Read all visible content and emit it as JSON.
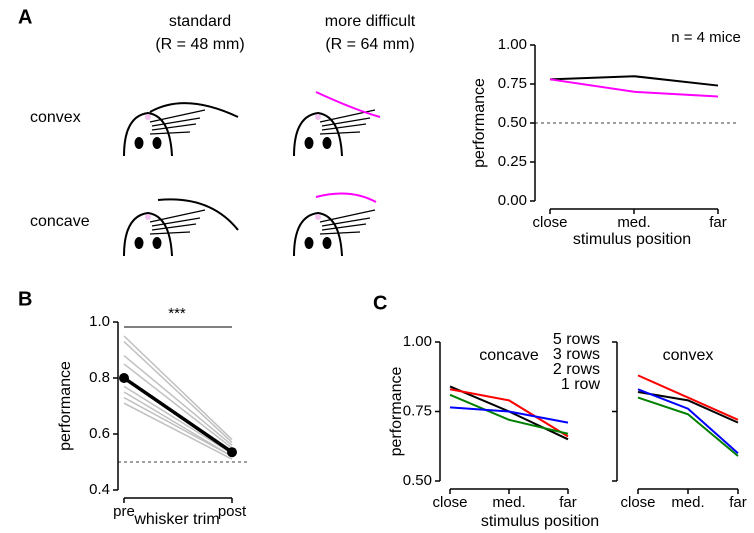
{
  "diagram": {
    "columns": [
      {
        "title": "standard",
        "subtitle": "(R = 48 mm)",
        "color": "#000000"
      },
      {
        "title": "more difficult",
        "subtitle": "(R = 64 mm)",
        "color": "#ff00ff"
      }
    ],
    "rows": [
      "convex",
      "concave"
    ]
  },
  "chart_data": [
    {
      "type": "line",
      "panel": "A",
      "annotation": "n = 4 mice",
      "xlabel": "stimulus position",
      "ylabel": "performance",
      "categories": [
        "close",
        "med.",
        "far"
      ],
      "series": [
        {
          "color": "#000000",
          "values": [
            0.78,
            0.8,
            0.74
          ]
        },
        {
          "color": "#ff00ff",
          "values": [
            0.78,
            0.7,
            0.67
          ]
        }
      ],
      "ylim": [
        0,
        1
      ],
      "yticks": [
        {
          "value": 0,
          "label": "0.00"
        },
        {
          "value": 0.25,
          "label": "0.25"
        },
        {
          "value": 0.5,
          "label": "0.50"
        },
        {
          "value": 0.75,
          "label": "0.75"
        },
        {
          "value": 1,
          "label": "1.00"
        }
      ],
      "hline": 0.5
    },
    {
      "type": "line",
      "panel": "B",
      "annotation": "***",
      "xlabel": "whisker trim",
      "ylabel": "performance",
      "categories": [
        "pre",
        "post"
      ],
      "series": [
        {
          "color": "#c0c0c0",
          "values": [
            0.95,
            0.58
          ]
        },
        {
          "color": "#c0c0c0",
          "values": [
            0.93,
            0.57
          ]
        },
        {
          "color": "#c0c0c0",
          "values": [
            0.88,
            0.56
          ]
        },
        {
          "color": "#c0c0c0",
          "values": [
            0.85,
            0.55
          ]
        },
        {
          "color": "#c0c0c0",
          "values": [
            0.8,
            0.54
          ]
        },
        {
          "color": "#c0c0c0",
          "values": [
            0.77,
            0.53
          ]
        },
        {
          "color": "#c0c0c0",
          "values": [
            0.75,
            0.52
          ]
        },
        {
          "color": "#c0c0c0",
          "values": [
            0.73,
            0.52
          ]
        },
        {
          "color": "#c0c0c0",
          "values": [
            0.71,
            0.51
          ]
        },
        {
          "color": "#000000",
          "values": [
            0.8,
            0.535
          ],
          "markers": true
        }
      ],
      "ylim": [
        0.4,
        1.0
      ],
      "yticks": [
        0.4,
        0.6,
        0.8,
        {
          "value": 1.0,
          "label": "1.0"
        }
      ],
      "hline": 0.5
    },
    {
      "type": "line",
      "panel": "C",
      "title": "concave",
      "xlabel": "stimulus position",
      "ylabel": "performance",
      "legend": "upper right",
      "categories": [
        "close",
        "med.",
        "far"
      ],
      "series": [
        {
          "name": "5 rows",
          "color": "#000000",
          "values": [
            0.84,
            0.75,
            0.65
          ]
        },
        {
          "name": "3 rows",
          "color": "#ff0000",
          "values": [
            0.83,
            0.79,
            0.66
          ]
        },
        {
          "name": "2 rows",
          "color": "#008000",
          "values": [
            0.81,
            0.72,
            0.67
          ]
        },
        {
          "name": "1 row",
          "color": "#0000ff",
          "values": [
            0.765,
            0.75,
            0.71
          ]
        }
      ],
      "ylim": [
        0.5,
        1.0
      ],
      "yticks": [
        {
          "value": 0.5,
          "label": "0.50"
        },
        {
          "value": 0.75,
          "label": "0.75"
        },
        {
          "value": 1.0,
          "label": "1.00"
        }
      ]
    },
    {
      "type": "line",
      "title": "convex",
      "categories": [
        "close",
        "med.",
        "far"
      ],
      "series": [
        {
          "color": "#000000",
          "values": [
            0.82,
            0.79,
            0.71
          ]
        },
        {
          "color": "#ff0000",
          "values": [
            0.88,
            0.8,
            0.72
          ]
        },
        {
          "color": "#008000",
          "values": [
            0.8,
            0.74,
            0.59
          ]
        },
        {
          "color": "#0000ff",
          "values": [
            0.83,
            0.76,
            0.6
          ]
        }
      ],
      "ylim": [
        0.5,
        1.0
      ],
      "yticks": [
        0.5,
        0.75,
        1.0
      ]
    }
  ]
}
